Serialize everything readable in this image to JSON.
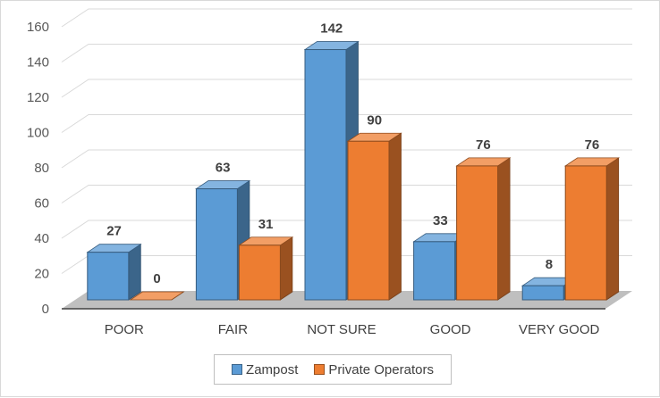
{
  "chart_data": {
    "type": "bar",
    "categories": [
      "POOR",
      "FAIR",
      "NOT SURE",
      "GOOD",
      "VERY GOOD"
    ],
    "series": [
      {
        "name": "Zampost",
        "values": [
          27,
          63,
          142,
          33,
          8
        ],
        "color": "#5b9bd5"
      },
      {
        "name": "Private Operators",
        "values": [
          0,
          31,
          90,
          76,
          76
        ],
        "color": "#ed7d31"
      }
    ],
    "y_ticks": [
      "0",
      "20",
      "40",
      "60",
      "80",
      "100",
      "120",
      "140",
      "160"
    ],
    "ylim": [
      0,
      160
    ],
    "grid": true,
    "legend_position": "bottom",
    "style": "3d-clustered-column"
  }
}
